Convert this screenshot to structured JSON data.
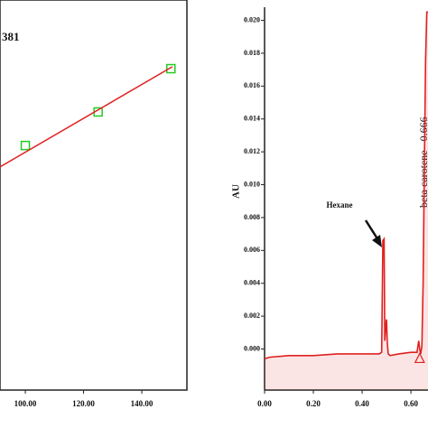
{
  "chart_data": [
    {
      "type": "scatter",
      "annotation": "381",
      "xlim": [
        91.3,
        155.5
      ],
      "ylim": [
        0,
        100
      ],
      "xticks": [
        {
          "value": 100,
          "label": "100.00"
        },
        {
          "value": 120,
          "label": "120.00"
        },
        {
          "value": 140,
          "label": "140.00"
        }
      ],
      "series": [
        {
          "kind": "points",
          "color": "#22cc22",
          "x": [
            100,
            125,
            150
          ],
          "values": [
            62.7,
            71.3,
            82.4
          ]
        },
        {
          "kind": "line",
          "color": "#e02020",
          "x": [
            91.3,
            150.5
          ],
          "values": [
            57.2,
            82.9
          ]
        }
      ]
    },
    {
      "type": "line",
      "ylabel": "AU",
      "annotations": [
        "Hexane",
        "beta carotene - 0.666"
      ],
      "xlim": [
        0,
        0.67
      ],
      "ylim": [
        -0.0025,
        0.0208
      ],
      "xticks": [
        {
          "value": 0,
          "label": "0.00"
        },
        {
          "value": 0.2,
          "label": "0.20"
        },
        {
          "value": 0.4,
          "label": "0.40"
        },
        {
          "value": 0.6,
          "label": "0.60"
        }
      ],
      "yticks": [
        {
          "value": 0,
          "label": "0.000"
        },
        {
          "value": 0.002,
          "label": "0.002"
        },
        {
          "value": 0.004,
          "label": "0.004"
        },
        {
          "value": 0.006,
          "label": "0.006"
        },
        {
          "value": 0.008,
          "label": "0.008"
        },
        {
          "value": 0.01,
          "label": "0.010"
        },
        {
          "value": 0.012,
          "label": "0.012"
        },
        {
          "value": 0.014,
          "label": "0.014"
        },
        {
          "value": 0.016,
          "label": "0.016"
        },
        {
          "value": 0.018,
          "label": "0.018"
        },
        {
          "value": 0.02,
          "label": "0.020"
        }
      ],
      "series": [
        {
          "color": "#e02020",
          "x": [
            0,
            0.02,
            0.1,
            0.2,
            0.3,
            0.4,
            0.47,
            0.48,
            0.485,
            0.49,
            0.493,
            0.496,
            0.5,
            0.503,
            0.507,
            0.515,
            0.55,
            0.6,
            0.625,
            0.632,
            0.636,
            0.64,
            0.645,
            0.65,
            0.655,
            0.66,
            0.665,
            0.67
          ],
          "values": [
            -0.0006,
            -0.0005,
            -0.0004,
            -0.0004,
            -0.0003,
            -0.0003,
            -0.0003,
            -0.0002,
            0.0066,
            0.0067,
            0.0005,
            0.0012,
            0.0018,
            0.0004,
            -0.0003,
            -0.0004,
            -0.0003,
            -0.0002,
            -0.0002,
            0.0005,
            0.0,
            -0.0003,
            0.0002,
            0.004,
            0.011,
            0.0175,
            0.0205,
            0.0205
          ]
        }
      ],
      "marker": {
        "color": "#e02020",
        "x": 0.636,
        "y": -0.0006
      }
    }
  ]
}
